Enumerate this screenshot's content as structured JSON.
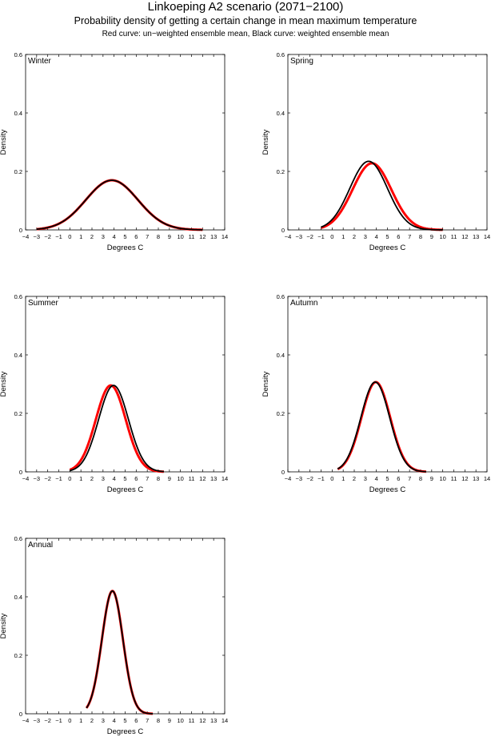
{
  "header": {
    "title": "Linkoeping A2 scenario (2071−2100)",
    "subtitle": "Probability density of getting a certain change in mean maximum temperature",
    "note": "Red curve: un−weighted ensemble mean, Black curve: weighted ensemble mean"
  },
  "colors": {
    "unweighted": "#ff0000",
    "weighted": "#000000"
  },
  "chart_data": [
    {
      "type": "line",
      "panel": "Winter",
      "xlabel": "Degrees C",
      "ylabel": "Density",
      "xlim": [
        -4,
        14
      ],
      "ylim": [
        0,
        0.6
      ],
      "xticks": [
        -4,
        -3,
        -2,
        -1,
        0,
        1,
        2,
        3,
        4,
        5,
        6,
        7,
        8,
        9,
        10,
        11,
        12,
        13,
        14
      ],
      "yticks": [
        0,
        0.2,
        0.4,
        0.6
      ],
      "x_range": [
        -3,
        12
      ],
      "series": [
        {
          "role": "unweighted",
          "color": "#ff0000",
          "mean": 3.8,
          "sd": 2.35
        },
        {
          "role": "weighted",
          "color": "#000000",
          "mean": 3.8,
          "sd": 2.35
        }
      ]
    },
    {
      "type": "line",
      "panel": "Spring",
      "xlabel": "Degrees C",
      "ylabel": "Density",
      "xlim": [
        -4,
        14
      ],
      "ylim": [
        0,
        0.6
      ],
      "xticks": [
        -4,
        -3,
        -2,
        -1,
        0,
        1,
        2,
        3,
        4,
        5,
        6,
        7,
        8,
        9,
        10,
        11,
        12,
        13,
        14
      ],
      "yticks": [
        0,
        0.2,
        0.4,
        0.6
      ],
      "x_range": [
        -1,
        10
      ],
      "series": [
        {
          "role": "unweighted",
          "color": "#ff0000",
          "mean": 3.6,
          "sd": 1.75
        },
        {
          "role": "weighted",
          "color": "#000000",
          "mean": 3.3,
          "sd": 1.7
        }
      ]
    },
    {
      "type": "line",
      "panel": "Summer",
      "xlabel": "Degrees C",
      "ylabel": "Density",
      "xlim": [
        -4,
        14
      ],
      "ylim": [
        0,
        0.6
      ],
      "xticks": [
        -4,
        -3,
        -2,
        -1,
        0,
        1,
        2,
        3,
        4,
        5,
        6,
        7,
        8,
        9,
        10,
        11,
        12,
        13,
        14
      ],
      "yticks": [
        0,
        0.2,
        0.4,
        0.6
      ],
      "x_range": [
        0,
        8.5
      ],
      "series": [
        {
          "role": "unweighted",
          "color": "#ff0000",
          "mean": 3.7,
          "sd": 1.35
        },
        {
          "role": "weighted",
          "color": "#000000",
          "mean": 3.95,
          "sd": 1.35
        }
      ]
    },
    {
      "type": "line",
      "panel": "Autumn",
      "xlabel": "Degrees C",
      "ylabel": "Density",
      "xlim": [
        -4,
        14
      ],
      "ylim": [
        0,
        0.6
      ],
      "xticks": [
        -4,
        -3,
        -2,
        -1,
        0,
        1,
        2,
        3,
        4,
        5,
        6,
        7,
        8,
        9,
        10,
        11,
        12,
        13,
        14
      ],
      "yticks": [
        0,
        0.2,
        0.4,
        0.6
      ],
      "x_range": [
        0.5,
        8.5
      ],
      "series": [
        {
          "role": "unweighted",
          "color": "#ff0000",
          "mean": 3.95,
          "sd": 1.3
        },
        {
          "role": "weighted",
          "color": "#000000",
          "mean": 3.9,
          "sd": 1.3
        }
      ]
    },
    {
      "type": "line",
      "panel": "Annual",
      "xlabel": "Degrees C",
      "ylabel": "Density",
      "xlim": [
        -4,
        14
      ],
      "ylim": [
        0,
        0.6
      ],
      "xticks": [
        -4,
        -3,
        -2,
        -1,
        0,
        1,
        2,
        3,
        4,
        5,
        6,
        7,
        8,
        9,
        10,
        11,
        12,
        13,
        14
      ],
      "yticks": [
        0,
        0.2,
        0.4,
        0.6
      ],
      "x_range": [
        1.5,
        7.5
      ],
      "series": [
        {
          "role": "unweighted",
          "color": "#ff0000",
          "mean": 3.85,
          "sd": 0.95
        },
        {
          "role": "weighted",
          "color": "#000000",
          "mean": 3.85,
          "sd": 0.95
        }
      ]
    }
  ]
}
